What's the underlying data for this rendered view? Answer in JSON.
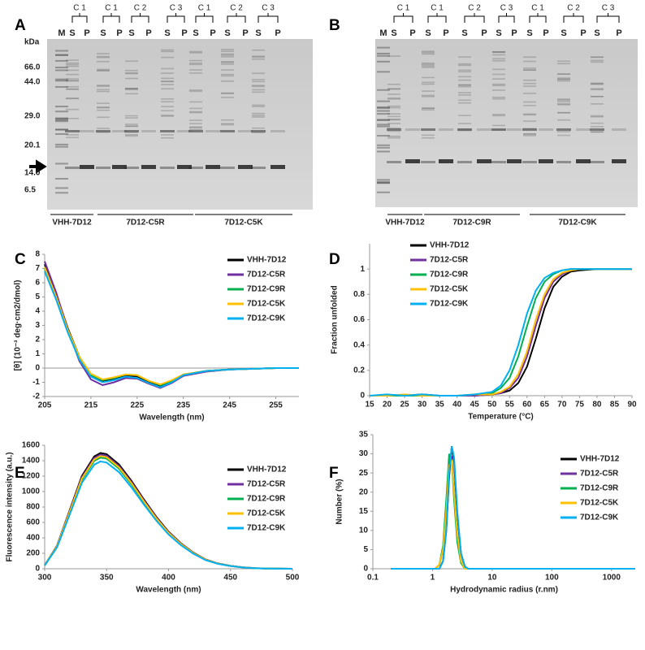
{
  "gels": [
    {
      "panel": "A",
      "unit": "kDa",
      "markers": [
        "66.0",
        "44.0",
        "29.0",
        "20.1",
        "14.0",
        "6.5"
      ],
      "conditions": [
        "C 1",
        "C 1",
        "C 2",
        "C 3",
        "C 1",
        "C 2",
        "C 3"
      ],
      "lanes": [
        "M",
        "S",
        "P",
        "S",
        "P",
        "S",
        "P",
        "S",
        "P",
        "S",
        "P",
        "S",
        "P",
        "S",
        "P"
      ],
      "constructs": [
        "VHH-7D12",
        "7D12-C5R",
        "7D12-C5K"
      ]
    },
    {
      "panel": "B",
      "conditions": [
        "C 1",
        "C 1",
        "C 2",
        "C 3",
        "C 1",
        "C 2",
        "C 3"
      ],
      "lanes": [
        "M",
        "S",
        "P",
        "S",
        "P",
        "S",
        "P",
        "S",
        "P",
        "S",
        "P",
        "S",
        "P",
        "S",
        "P"
      ],
      "constructs": [
        "VHH-7D12",
        "7D12-C9R",
        "7D12-C9K"
      ]
    }
  ],
  "chart_data": [
    {
      "type": "line",
      "panel": "C",
      "x_label": "Wavelength (nm)",
      "y_label": "[θ] (10⁻³ deg·cm2/dmol)",
      "xlim": [
        205,
        260
      ],
      "xticks": [
        205,
        215,
        225,
        235,
        245,
        255
      ],
      "ylim": [
        -2,
        8
      ],
      "yticks": [
        -2,
        -1,
        0,
        1,
        2,
        3,
        4,
        5,
        6,
        7,
        8
      ],
      "x": [
        205,
        207.5,
        210,
        212.5,
        215,
        217.5,
        220,
        222.5,
        225,
        227.5,
        230,
        232.5,
        235,
        240,
        245,
        250,
        255,
        260
      ],
      "series": [
        {
          "name": "VHH-7D12",
          "color": "#000000",
          "values": [
            7.3,
            5.2,
            2.8,
            0.8,
            -0.5,
            -0.9,
            -0.75,
            -0.55,
            -0.6,
            -0.95,
            -1.25,
            -0.95,
            -0.5,
            -0.2,
            -0.1,
            -0.05,
            0,
            0
          ]
        },
        {
          "name": "7D12-C5R",
          "color": "#7030a0",
          "values": [
            7.5,
            5.3,
            2.7,
            0.5,
            -0.8,
            -1.2,
            -1.0,
            -0.7,
            -0.75,
            -1.1,
            -1.4,
            -1.05,
            -0.55,
            -0.25,
            -0.1,
            -0.05,
            0,
            0
          ]
        },
        {
          "name": "7D12-C9R",
          "color": "#00b050",
          "values": [
            7.0,
            4.9,
            2.6,
            0.7,
            -0.5,
            -0.85,
            -0.7,
            -0.45,
            -0.5,
            -0.9,
            -1.2,
            -0.9,
            -0.45,
            -0.2,
            -0.1,
            -0.05,
            0,
            0
          ]
        },
        {
          "name": "7D12-C5K",
          "color": "#ffc000",
          "values": [
            7.1,
            5.0,
            2.7,
            0.8,
            -0.4,
            -0.8,
            -0.65,
            -0.45,
            -0.5,
            -0.9,
            -1.15,
            -0.85,
            -0.45,
            -0.2,
            -0.1,
            -0.05,
            0,
            0
          ]
        },
        {
          "name": "7D12-C9K",
          "color": "#00b0f0",
          "values": [
            6.8,
            4.8,
            2.5,
            0.6,
            -0.6,
            -1.0,
            -0.85,
            -0.6,
            -0.7,
            -1.05,
            -1.35,
            -1.0,
            -0.5,
            -0.2,
            -0.1,
            -0.05,
            0,
            0
          ]
        }
      ]
    },
    {
      "type": "line",
      "panel": "D",
      "x_label": "Temperature (°C)",
      "y_label": "Fraction unfolded",
      "xlim": [
        15,
        90
      ],
      "xticks": [
        15,
        20,
        25,
        30,
        35,
        40,
        45,
        50,
        55,
        60,
        65,
        70,
        75,
        80,
        85,
        90
      ],
      "ylim": [
        0,
        1.2
      ],
      "yticks": [
        0,
        0.2,
        0.4,
        0.6,
        0.8,
        1
      ],
      "x": [
        15,
        20,
        25,
        30,
        35,
        40,
        45,
        50,
        52.5,
        55,
        57.5,
        60,
        62.5,
        65,
        67.5,
        70,
        72.5,
        75,
        80,
        85,
        90
      ],
      "series": [
        {
          "name": "VHH-7D12",
          "color": "#000000",
          "values": [
            0,
            0,
            0,
            0.01,
            0,
            0,
            0,
            0.01,
            0.02,
            0.04,
            0.1,
            0.23,
            0.45,
            0.69,
            0.86,
            0.94,
            0.98,
            0.99,
            1,
            1,
            1
          ]
        },
        {
          "name": "7D12-C5R",
          "color": "#7030a0",
          "values": [
            0,
            0,
            0,
            0,
            0,
            0,
            0,
            0.01,
            0.02,
            0.06,
            0.14,
            0.31,
            0.55,
            0.77,
            0.9,
            0.96,
            0.99,
            1,
            1,
            1,
            1
          ]
        },
        {
          "name": "7D12-C9R",
          "color": "#00b050",
          "values": [
            0,
            0,
            0,
            0,
            0,
            0,
            0.01,
            0.02,
            0.06,
            0.14,
            0.31,
            0.55,
            0.77,
            0.9,
            0.96,
            0.99,
            1,
            1,
            1,
            1,
            1
          ]
        },
        {
          "name": "7D12-C5K",
          "color": "#ffc000",
          "values": [
            0,
            0,
            0.01,
            0,
            0,
            0,
            0.01,
            0.01,
            0.03,
            0.07,
            0.17,
            0.35,
            0.6,
            0.8,
            0.92,
            0.97,
            0.99,
            1,
            1,
            1,
            1
          ]
        },
        {
          "name": "7D12-C9K",
          "color": "#00b0f0",
          "values": [
            0,
            0.01,
            0,
            0.01,
            0,
            0,
            0.01,
            0.03,
            0.08,
            0.2,
            0.4,
            0.65,
            0.83,
            0.93,
            0.97,
            0.99,
            1,
            1,
            1,
            1,
            1
          ]
        }
      ]
    },
    {
      "type": "line",
      "panel": "E",
      "x_label": "Wavelength (nm)",
      "y_label": "Fluorescence intensity (a.u.)",
      "xlim": [
        300,
        500
      ],
      "xticks": [
        300,
        350,
        400,
        450,
        500
      ],
      "ylim": [
        0,
        1600
      ],
      "yticks": [
        0,
        200,
        400,
        600,
        800,
        1000,
        1200,
        1400,
        1600
      ],
      "x": [
        300,
        310,
        320,
        330,
        340,
        345,
        350,
        360,
        370,
        380,
        390,
        400,
        410,
        420,
        430,
        440,
        450,
        460,
        470,
        480,
        500
      ],
      "series": [
        {
          "name": "VHH-7D12",
          "color": "#000000",
          "values": [
            45,
            300,
            750,
            1200,
            1455,
            1500,
            1485,
            1350,
            1140,
            900,
            675,
            480,
            330,
            210,
            120,
            68,
            38,
            18,
            8,
            3,
            0
          ]
        },
        {
          "name": "7D12-C5R",
          "color": "#7030a0",
          "values": [
            44,
            296,
            740,
            1184,
            1436,
            1480,
            1465,
            1332,
            1125,
            888,
            666,
            474,
            326,
            207,
            118,
            67,
            37,
            18,
            7,
            3,
            0
          ]
        },
        {
          "name": "7D12-C9R",
          "color": "#00b050",
          "values": [
            43,
            288,
            720,
            1152,
            1397,
            1440,
            1426,
            1296,
            1094,
            864,
            648,
            461,
            317,
            202,
            115,
            65,
            36,
            17,
            7,
            3,
            0
          ]
        },
        {
          "name": "7D12-C5K",
          "color": "#ffc000",
          "values": [
            44,
            292,
            730,
            1168,
            1416,
            1460,
            1445,
            1314,
            1110,
            876,
            657,
            467,
            321,
            204,
            117,
            66,
            37,
            18,
            7,
            3,
            0
          ]
        },
        {
          "name": "7D12-C9K",
          "color": "#00b0f0",
          "values": [
            42,
            278,
            695,
            1112,
            1348,
            1390,
            1376,
            1251,
            1056,
            834,
            626,
            445,
            306,
            195,
            111,
            63,
            35,
            17,
            7,
            3,
            0
          ]
        }
      ]
    },
    {
      "type": "line",
      "panel": "F",
      "x_label": "Hydrodynamic radius (r.nm)",
      "y_label": "Number (%)",
      "log_x": true,
      "xlim": [
        0.1,
        2500
      ],
      "xticks": [
        0.1,
        1,
        10,
        100,
        1000
      ],
      "ylim": [
        0,
        35
      ],
      "yticks": [
        0,
        5,
        10,
        15,
        20,
        25,
        30,
        35
      ],
      "x": [
        0.2,
        1.1,
        1.3,
        1.5,
        1.7,
        1.9,
        2.1,
        2.3,
        2.6,
        3.0,
        3.5,
        4.0,
        2500
      ],
      "series": [
        {
          "name": "VHH-7D12",
          "color": "#000000",
          "values": [
            0,
            0,
            0,
            2,
            10,
            24,
            32,
            28,
            14,
            4,
            0.5,
            0,
            0
          ]
        },
        {
          "name": "7D12-C5R",
          "color": "#7030a0",
          "values": [
            0,
            0,
            1,
            5,
            16,
            28,
            29,
            20,
            8,
            2,
            0,
            0,
            0
          ]
        },
        {
          "name": "7D12-C9R",
          "color": "#00b050",
          "values": [
            0,
            0,
            1,
            6,
            18,
            30,
            28,
            18,
            7,
            1.5,
            0,
            0,
            0
          ]
        },
        {
          "name": "7D12-C5K",
          "color": "#ffc000",
          "values": [
            0,
            0,
            1,
            5,
            15,
            27,
            28,
            20,
            9,
            2,
            0,
            0,
            0
          ]
        },
        {
          "name": "7D12-C9K",
          "color": "#00b0f0",
          "values": [
            0,
            0,
            0,
            2,
            10,
            25,
            32,
            29,
            15,
            4,
            0.5,
            0,
            0
          ]
        }
      ]
    }
  ]
}
